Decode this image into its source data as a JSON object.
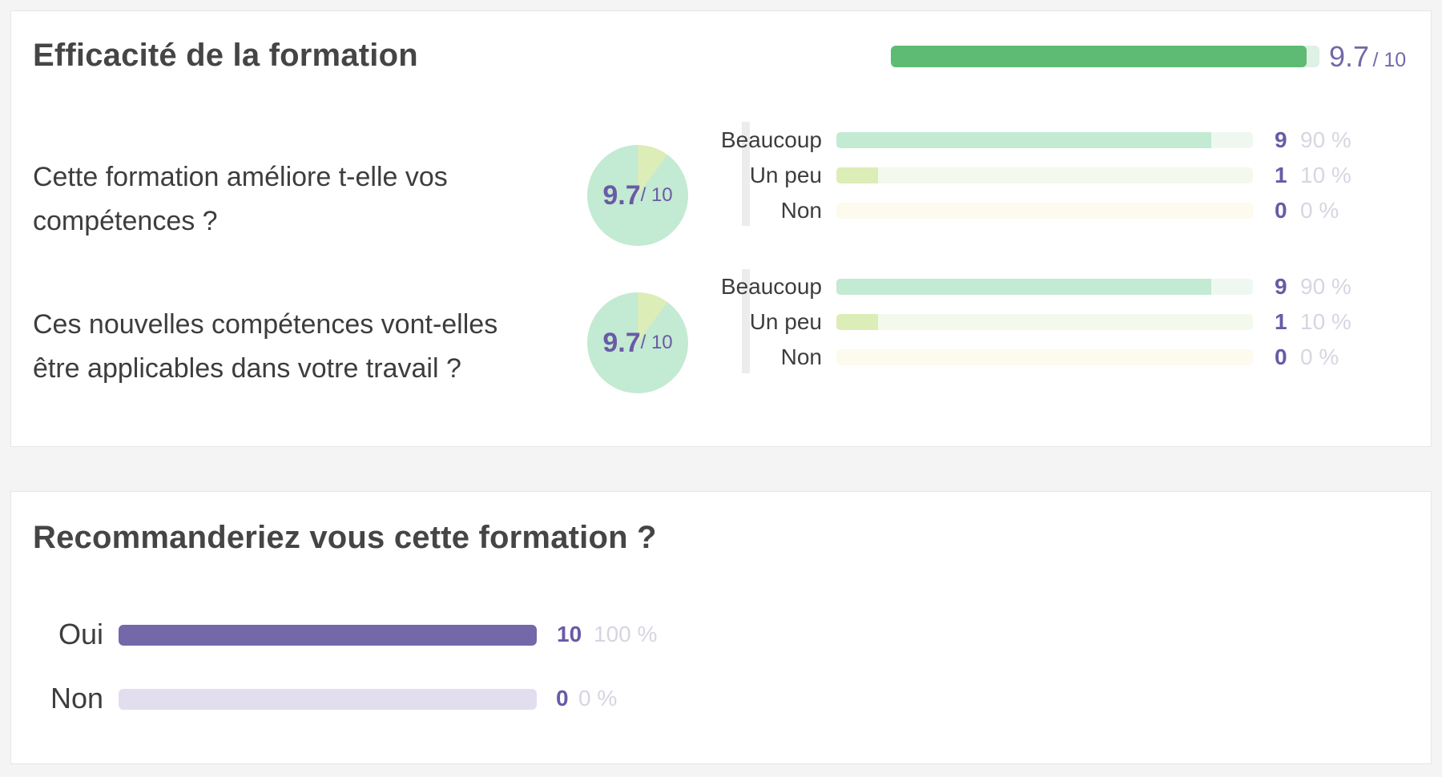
{
  "effectiveness": {
    "title": "Efficacité de la formation",
    "overall_score": "9.7",
    "overall_max": "/ 10",
    "overall_fraction": 0.97,
    "questions": [
      {
        "text": "Cette formation améliore t-elle vos compétences ?",
        "score": "9.7",
        "max": "/ 10",
        "answers": [
          {
            "label": "Beaucoup",
            "count": "9",
            "pct": "90 %",
            "fraction": 0.9
          },
          {
            "label": "Un peu",
            "count": "1",
            "pct": "10 %",
            "fraction": 0.1
          },
          {
            "label": "Non",
            "count": "0",
            "pct": "0 %",
            "fraction": 0
          }
        ]
      },
      {
        "text": "Ces nouvelles compétences vont-elles être applicables dans votre travail ?",
        "score": "9.7",
        "max": "/ 10",
        "answers": [
          {
            "label": "Beaucoup",
            "count": "9",
            "pct": "90 %",
            "fraction": 0.9
          },
          {
            "label": "Un peu",
            "count": "1",
            "pct": "10 %",
            "fraction": 0.1
          },
          {
            "label": "Non",
            "count": "0",
            "pct": "0 %",
            "fraction": 0
          }
        ]
      }
    ]
  },
  "recommendation": {
    "title": "Recommanderiez vous cette formation ?",
    "answers": [
      {
        "label": "Oui",
        "count": "10",
        "pct": "100 %",
        "fraction": 1
      },
      {
        "label": "Non",
        "count": "0",
        "pct": "0 %",
        "fraction": 0
      }
    ]
  },
  "colors": {
    "overall_fill": "#5dbb73",
    "beaucoup_fill": "#c3ead2",
    "beaucoup_track": "#eef8f1",
    "unpeu_fill": "#dcedb8",
    "unpeu_track": "#f3f9ec",
    "non_track": "#fdfaee",
    "pie_main": "#c3ead2",
    "pie_slice": "#dcedb8",
    "recommend_fill": "#7468a8",
    "recommend_track": "#e2def0",
    "score_text": "#6a5aa6"
  }
}
